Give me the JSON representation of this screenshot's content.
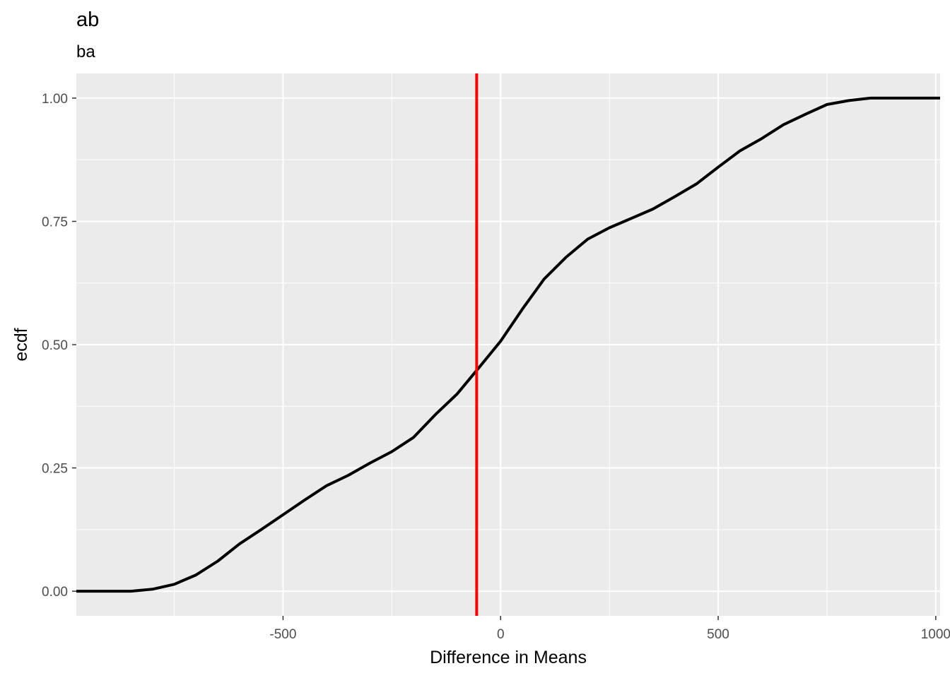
{
  "chart_data": {
    "type": "line",
    "title": "ab",
    "subtitle": "ba",
    "xlabel": "Difference in Means",
    "ylabel": "ecdf",
    "xlim": [
      -975,
      1010
    ],
    "ylim": [
      -0.05,
      1.05
    ],
    "x_ticks": [
      {
        "value": -500,
        "label": "-500"
      },
      {
        "value": 0,
        "label": "0"
      },
      {
        "value": 500,
        "label": "500"
      },
      {
        "value": 1000,
        "label": "1000"
      }
    ],
    "y_ticks": [
      {
        "value": 0,
        "label": "0.00"
      },
      {
        "value": 0.25,
        "label": "0.25"
      },
      {
        "value": 0.5,
        "label": "0.50"
      },
      {
        "value": 0.75,
        "label": "0.75"
      },
      {
        "value": 1,
        "label": "1.00"
      }
    ],
    "grid": true,
    "series": [
      {
        "color": "#000000",
        "x": [
          -975,
          -850,
          -800,
          -750,
          -700,
          -650,
          -600,
          -550,
          -500,
          -450,
          -400,
          -350,
          -300,
          -250,
          -200,
          -150,
          -100,
          -50,
          0,
          50,
          100,
          150,
          200,
          250,
          300,
          350,
          400,
          450,
          500,
          550,
          600,
          650,
          700,
          750,
          800,
          850,
          1010
        ],
        "y": [
          0.0,
          0.0,
          0.004,
          0.014,
          0.033,
          0.061,
          0.096,
          0.125,
          0.155,
          0.185,
          0.214,
          0.235,
          0.26,
          0.283,
          0.312,
          0.358,
          0.4,
          0.453,
          0.507,
          0.572,
          0.633,
          0.677,
          0.714,
          0.737,
          0.756,
          0.775,
          0.8,
          0.826,
          0.86,
          0.893,
          0.918,
          0.946,
          0.967,
          0.987,
          0.995,
          1.0,
          1.0
        ]
      }
    ],
    "vline": {
      "x": -55,
      "color": "#ff0000"
    }
  }
}
